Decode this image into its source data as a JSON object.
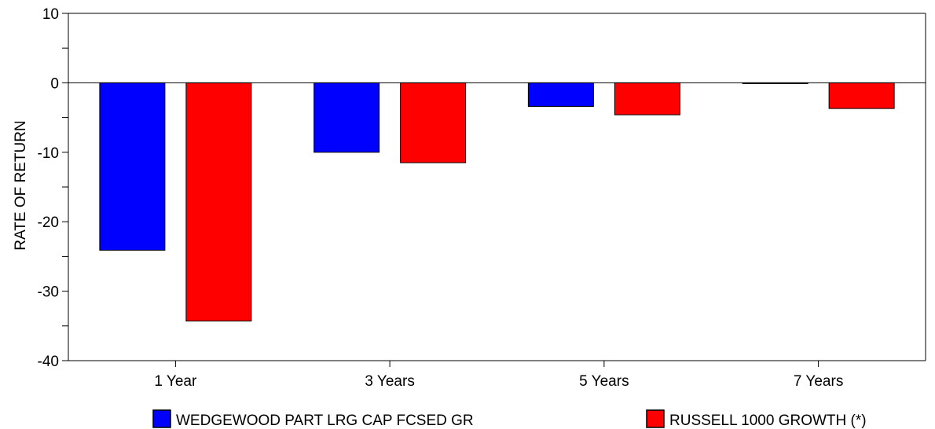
{
  "chart_data": {
    "type": "bar",
    "title": "",
    "xlabel": "",
    "ylabel": "RATE OF RETURN",
    "ylim": [
      -40,
      10
    ],
    "yticks": [
      "10",
      "0",
      "-10",
      "-20",
      "-30",
      "-40"
    ],
    "categories": [
      "1 Year",
      "3 Years",
      "5 Years",
      "7 Years"
    ],
    "series": [
      {
        "name": "WEDGEWOOD PART LRG CAP FCSED GR",
        "color": "#0000ff",
        "values": [
          -24.1,
          -10.0,
          -3.4,
          -0.1
        ]
      },
      {
        "name": "RUSSELL 1000 GROWTH (*)",
        "color": "#ff0000",
        "values": [
          -34.3,
          -11.5,
          -4.6,
          -3.7
        ]
      }
    ],
    "legend_position": "bottom",
    "grid": false
  }
}
